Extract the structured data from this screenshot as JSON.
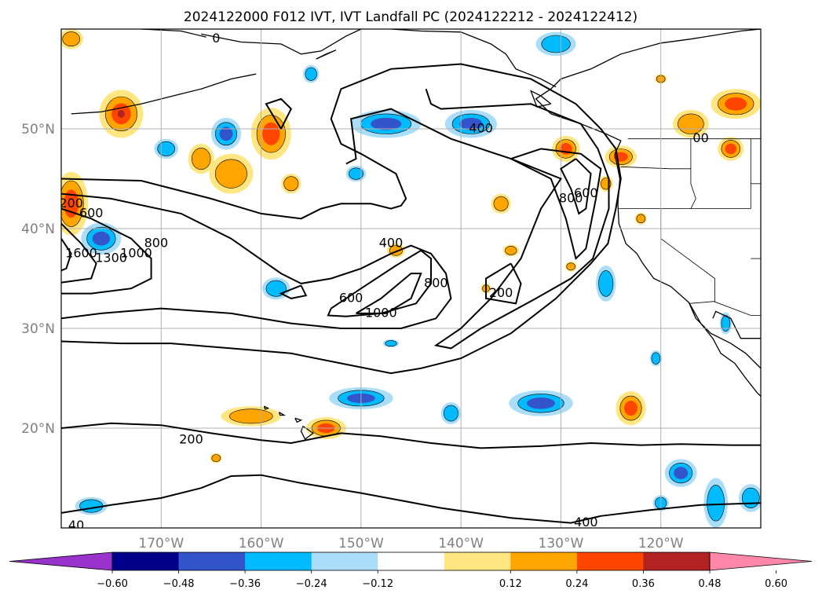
{
  "chart_data": {
    "type": "contour-map",
    "title": "2024122000 F012 IVT, IVT Landfall PC (2024122212 - 2024122412)",
    "x_ticks": [
      "170°W",
      "160°W",
      "150°W",
      "140°W",
      "130°W",
      "120°W"
    ],
    "y_ticks": [
      "50°N",
      "40°N",
      "30°N",
      "20°N"
    ],
    "xlim": [
      -180,
      -110
    ],
    "ylim": [
      10,
      60
    ],
    "grid": true,
    "colorbar": {
      "ticks": [
        "−0.60",
        "−0.48",
        "−0.36",
        "−0.24",
        "−0.12",
        "0.12",
        "0.24",
        "0.36",
        "0.48",
        "0.60"
      ],
      "colors": [
        "#9933cc",
        "#00008b",
        "#3355cc",
        "#00bbff",
        "#aaddf8",
        "#ffffff",
        "#ffe680",
        "#ffa500",
        "#ff4500",
        "#b22222",
        "#ff88aa"
      ],
      "extend": "both"
    },
    "contour_labels": [
      {
        "text": "200",
        "lon": -179,
        "lat": 42.5
      },
      {
        "text": "600",
        "lon": -177,
        "lat": 41.5
      },
      {
        "text": "1600",
        "lon": -178,
        "lat": 37.5
      },
      {
        "text": "1300",
        "lon": -175,
        "lat": 37
      },
      {
        "text": "1000",
        "lon": -172.5,
        "lat": 37.5
      },
      {
        "text": "800",
        "lon": -170.5,
        "lat": 38.5
      },
      {
        "text": "400",
        "lon": -147,
        "lat": 38.5
      },
      {
        "text": "600",
        "lon": -151,
        "lat": 33
      },
      {
        "text": "1000",
        "lon": -148,
        "lat": 31.5
      },
      {
        "text": "800",
        "lon": -142.5,
        "lat": 34.5
      },
      {
        "text": "200",
        "lon": -136,
        "lat": 33.5
      },
      {
        "text": "400",
        "lon": -138,
        "lat": 50
      },
      {
        "text": "800",
        "lon": -129,
        "lat": 43
      },
      {
        "text": "600",
        "lon": -127.5,
        "lat": 43.5
      },
      {
        "text": "200",
        "lon": -167,
        "lat": 18.8
      },
      {
        "text": "400",
        "lon": -127.5,
        "lat": 10.5
      },
      {
        "text": "40",
        "lon": -178.5,
        "lat": 10.2
      },
      {
        "text": "00",
        "lon": -116,
        "lat": 49
      },
      {
        "text": "0",
        "lon": -164.5,
        "lat": 59
      }
    ]
  }
}
